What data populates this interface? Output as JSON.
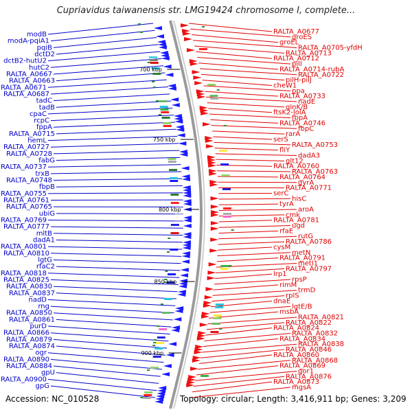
{
  "title": "Cupriavidus taiwanensis str. LMG19424 chromosome I, complete...",
  "footer": {
    "accession": "Accession: NC_010528",
    "info": "Topology: circular; Length: 3,416,911 bp; Genes: 3,209"
  },
  "scale_labels": [
    "700 kbp",
    "750 kbp",
    "800 kbp",
    "850 kbp",
    "900 kbp"
  ],
  "colors": {
    "left_labels": "#0000c8",
    "right_labels": "#e00000",
    "backbone": "#9a9a9a",
    "tick": "#2a8a2a"
  },
  "left_labels": [
    "modB",
    "modA-pqiA1",
    "pqiB",
    "dctD2",
    "dctB2-hutU2",
    "hutC2",
    "RALTA_A0667",
    "RALTA_A0663",
    "RALTA_A0671",
    "RALTA_A0687",
    "tadC",
    "tadB",
    "cpaC",
    "rcpC",
    "fppA",
    "RALTA_A0715",
    "hemL",
    "RALTA_A0727",
    "RALTA_A0728",
    "fabG",
    "RALTA_A0737",
    "trxB",
    "RALTA_A0748",
    "fbpB",
    "RALTA_A0755",
    "RALTA_A0761",
    "RALTA_A0765",
    "ubiG",
    "RALTA_A0769",
    "RALTA_A0777",
    "mltB",
    "dadA1",
    "RALTA_A0801",
    "RALTA_A0810",
    "lgtG",
    "rfaC2",
    "RALTA_A0818",
    "RALTA_A0825",
    "RALTA_A0830",
    "RALTA_A0837",
    "nadD",
    "rng",
    "RALTA_A0850",
    "RALTA_A0861",
    "purD",
    "RALTA_A0866",
    "RALTA_A0879",
    "RALTA_A0874",
    "ogr",
    "RALTA_A0890",
    "RALTA_A0884",
    "gpU",
    "RALTA_A0900",
    "gpG"
  ],
  "right_labels": [
    "RALTA_A0677",
    "groES",
    "groEL",
    "RALTA_A0705-yfdH",
    "RALTA_A0713",
    "RALTA_A0712",
    "pilI",
    "RALTA_A0714-rubA",
    "RALTA_A0722",
    "pilH-pilJ",
    "cheW1",
    "ppa",
    "RALTA_A0733",
    "nadE",
    "glnK/B",
    "ftsK2-lolA",
    "fbpA",
    "RALTA_A0746",
    "fbpC",
    "rarA",
    "serS",
    "RALTA_A0753",
    "fliY",
    "dadA3",
    "glt12",
    "RALTA_A0760",
    "RALTA_A0763",
    "RALTA_A0764",
    "gyrA",
    "RALTA_A0771",
    "serC",
    "hisC",
    "tyrA",
    "aroA",
    "cmk",
    "RALTA_A0781",
    "ugd",
    "rfaE",
    "rutG",
    "RALTA_A0786",
    "cysM",
    "metN",
    "RALTA_A0791",
    "metI1",
    "RALTA_A0797",
    "lrp1",
    "rpsP",
    "rimM",
    "trmD",
    "rplS",
    "dnaE",
    "lgtE/B",
    "msbA",
    "RALTA_A0821",
    "RALTA_A0822",
    "RALTA_A0824",
    "RALTA_A0832",
    "RALTA_A0834",
    "RALTA_A0838",
    "RALTA_A0846",
    "RALTA_A0860",
    "RALTA_A0868",
    "RALTA_A0869",
    "qor1",
    "RALTA_A0876",
    "RALTA_A0873",
    "mgsA"
  ]
}
